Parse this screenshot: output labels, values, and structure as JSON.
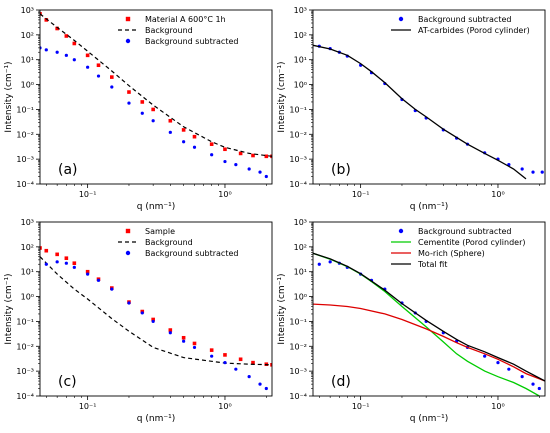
{
  "chart_data": [
    {
      "type": "scatter",
      "panel_label": "(a)",
      "xlabel": "q (nm⁻¹)",
      "ylabel": "Intensity (cm⁻¹)",
      "xscale": "log",
      "yscale": "log",
      "xlim": [
        0.045,
        2.2
      ],
      "ylim": [
        0.0001,
        1000
      ],
      "x_ticks": [
        {
          "v": 0.1,
          "label": "10⁻¹"
        },
        {
          "v": 1,
          "label": "10⁰"
        }
      ],
      "y_ticks": [
        {
          "v": 0.0001,
          "label": "10⁻⁴"
        },
        {
          "v": 0.001,
          "label": "10⁻³"
        },
        {
          "v": 0.01,
          "label": "10⁻²"
        },
        {
          "v": 0.1,
          "label": "10⁻¹"
        },
        {
          "v": 1,
          "label": "10⁰"
        },
        {
          "v": 10,
          "label": "10¹"
        },
        {
          "v": 100,
          "label": "10²"
        },
        {
          "v": 1000,
          "label": "10³"
        }
      ],
      "legend_position": "top-right",
      "series": [
        {
          "name": "Material A 600°C 1h",
          "style": "square",
          "color": "#ff0000",
          "x": [
            0.045,
            0.05,
            0.06,
            0.07,
            0.08,
            0.1,
            0.12,
            0.15,
            0.2,
            0.25,
            0.3,
            0.4,
            0.5,
            0.6,
            0.8,
            1.0,
            1.3,
            1.6,
            2.0,
            2.2
          ],
          "y": [
            700,
            400,
            180,
            90,
            45,
            15,
            6,
            2,
            0.5,
            0.2,
            0.1,
            0.035,
            0.015,
            0.008,
            0.004,
            0.0025,
            0.0017,
            0.0014,
            0.0013,
            0.0013
          ]
        },
        {
          "name": "Background",
          "style": "dashed",
          "color": "#000000",
          "x": [
            0.045,
            0.06,
            0.08,
            0.1,
            0.15,
            0.2,
            0.3,
            0.5,
            0.8,
            1.0,
            1.5,
            2.2
          ],
          "y": [
            700,
            200,
            60,
            22,
            3.5,
            0.9,
            0.15,
            0.02,
            0.005,
            0.003,
            0.0017,
            0.0013
          ]
        },
        {
          "name": "Background subtracted",
          "style": "circle",
          "color": "#0000ff",
          "x": [
            0.045,
            0.05,
            0.06,
            0.07,
            0.08,
            0.1,
            0.12,
            0.15,
            0.2,
            0.25,
            0.3,
            0.4,
            0.5,
            0.6,
            0.8,
            1.0,
            1.2,
            1.5,
            1.8,
            2.0
          ],
          "y": [
            30,
            25,
            20,
            15,
            10,
            5,
            2.2,
            0.8,
            0.18,
            0.07,
            0.035,
            0.012,
            0.005,
            0.003,
            0.0015,
            0.0008,
            0.0006,
            0.0004,
            0.0003,
            0.0002
          ]
        }
      ]
    },
    {
      "type": "scatter",
      "panel_label": "(b)",
      "xlabel": "q (nm⁻¹)",
      "ylabel": "Intensity (cm⁻¹)",
      "xscale": "log",
      "yscale": "log",
      "xlim": [
        0.045,
        2.2
      ],
      "ylim": [
        0.0001,
        1000
      ],
      "x_ticks": [
        {
          "v": 0.1,
          "label": "10⁻¹"
        },
        {
          "v": 1,
          "label": "10⁰"
        }
      ],
      "y_ticks": [
        {
          "v": 0.0001,
          "label": "10⁻⁴"
        },
        {
          "v": 0.001,
          "label": "10⁻³"
        },
        {
          "v": 0.01,
          "label": "10⁻²"
        },
        {
          "v": 0.1,
          "label": "10⁻¹"
        },
        {
          "v": 1,
          "label": "10⁰"
        },
        {
          "v": 10,
          "label": "10¹"
        },
        {
          "v": 100,
          "label": "10²"
        },
        {
          "v": 1000,
          "label": "10³"
        }
      ],
      "legend_position": "top-right",
      "series": [
        {
          "name": "Background subtracted",
          "style": "circle",
          "color": "#0000ff",
          "x": [
            0.05,
            0.06,
            0.07,
            0.08,
            0.1,
            0.12,
            0.15,
            0.2,
            0.25,
            0.3,
            0.4,
            0.5,
            0.6,
            0.8,
            1.0,
            1.2,
            1.5,
            1.8,
            2.1
          ],
          "y": [
            35,
            28,
            20,
            14,
            6,
            3,
            1.1,
            0.25,
            0.09,
            0.045,
            0.015,
            0.007,
            0.004,
            0.0018,
            0.001,
            0.0006,
            0.0004,
            0.0003,
            0.0003
          ]
        },
        {
          "name": "AT-carbides (Porod cylinder)",
          "style": "line",
          "color": "#000000",
          "x": [
            0.045,
            0.06,
            0.08,
            0.1,
            0.12,
            0.15,
            0.2,
            0.25,
            0.3,
            0.4,
            0.5,
            0.6,
            0.8,
            1.0,
            1.3,
            1.6
          ],
          "y": [
            38,
            27,
            15,
            7,
            3.3,
            1.2,
            0.27,
            0.1,
            0.05,
            0.016,
            0.0075,
            0.004,
            0.0017,
            0.0009,
            0.0004,
            0.00016
          ]
        }
      ]
    },
    {
      "type": "scatter",
      "panel_label": "(c)",
      "xlabel": "q (nm⁻¹)",
      "ylabel": "Intensity (cm⁻¹)",
      "xscale": "log",
      "yscale": "log",
      "xlim": [
        0.045,
        2.2
      ],
      "ylim": [
        0.0001,
        1000
      ],
      "x_ticks": [
        {
          "v": 0.1,
          "label": "10⁻¹"
        },
        {
          "v": 1,
          "label": "10⁰"
        }
      ],
      "y_ticks": [
        {
          "v": 0.0001,
          "label": "10⁻⁴"
        },
        {
          "v": 0.001,
          "label": "10⁻³"
        },
        {
          "v": 0.01,
          "label": "10⁻²"
        },
        {
          "v": 0.1,
          "label": "10⁻¹"
        },
        {
          "v": 1,
          "label": "10⁰"
        },
        {
          "v": 10,
          "label": "10¹"
        },
        {
          "v": 100,
          "label": "10²"
        },
        {
          "v": 1000,
          "label": "10³"
        }
      ],
      "legend_position": "top-right",
      "series": [
        {
          "name": "Sample",
          "style": "square",
          "color": "#ff0000",
          "x": [
            0.045,
            0.05,
            0.06,
            0.07,
            0.08,
            0.1,
            0.12,
            0.15,
            0.2,
            0.25,
            0.3,
            0.4,
            0.5,
            0.6,
            0.8,
            1.0,
            1.3,
            1.6,
            2.0,
            2.2
          ],
          "y": [
            90,
            70,
            50,
            35,
            22,
            10,
            5,
            2.2,
            0.6,
            0.25,
            0.12,
            0.045,
            0.022,
            0.013,
            0.007,
            0.0045,
            0.003,
            0.0022,
            0.0019,
            0.0018
          ]
        },
        {
          "name": "Background",
          "style": "dashed",
          "color": "#000000",
          "x": [
            0.045,
            0.06,
            0.08,
            0.1,
            0.15,
            0.2,
            0.3,
            0.5,
            0.8,
            1.0,
            1.5,
            2.2
          ],
          "y": [
            40,
            8,
            2,
            0.8,
            0.13,
            0.04,
            0.009,
            0.0035,
            0.0025,
            0.0021,
            0.0019,
            0.0018
          ]
        },
        {
          "name": "Background subtracted",
          "style": "circle",
          "color": "#0000ff",
          "x": [
            0.05,
            0.06,
            0.07,
            0.08,
            0.1,
            0.12,
            0.15,
            0.2,
            0.25,
            0.3,
            0.4,
            0.5,
            0.6,
            0.8,
            1.0,
            1.2,
            1.5,
            1.8,
            2.0
          ],
          "y": [
            20,
            25,
            22,
            15,
            8,
            4.5,
            2,
            0.55,
            0.22,
            0.1,
            0.035,
            0.016,
            0.009,
            0.004,
            0.0022,
            0.0012,
            0.0006,
            0.0003,
            0.0002
          ]
        }
      ]
    },
    {
      "type": "scatter",
      "panel_label": "(d)",
      "xlabel": "q (nm⁻¹)",
      "ylabel": "Intensity (cm⁻¹)",
      "xscale": "log",
      "yscale": "log",
      "xlim": [
        0.045,
        2.2
      ],
      "ylim": [
        0.0001,
        1000
      ],
      "x_ticks": [
        {
          "v": 0.1,
          "label": "10⁻¹"
        },
        {
          "v": 1,
          "label": "10⁰"
        }
      ],
      "y_ticks": [
        {
          "v": 0.0001,
          "label": "10⁻⁴"
        },
        {
          "v": 0.001,
          "label": "10⁻³"
        },
        {
          "v": 0.01,
          "label": "10⁻²"
        },
        {
          "v": 0.1,
          "label": "10⁻¹"
        },
        {
          "v": 1,
          "label": "10⁰"
        },
        {
          "v": 10,
          "label": "10¹"
        },
        {
          "v": 100,
          "label": "10²"
        },
        {
          "v": 1000,
          "label": "10³"
        }
      ],
      "legend_position": "top-right",
      "series": [
        {
          "name": "Background subtracted",
          "style": "circle",
          "color": "#0000ff",
          "x": [
            0.05,
            0.06,
            0.07,
            0.08,
            0.1,
            0.12,
            0.15,
            0.2,
            0.25,
            0.3,
            0.4,
            0.5,
            0.6,
            0.8,
            1.0,
            1.2,
            1.5,
            1.8,
            2.0
          ],
          "y": [
            20,
            25,
            22,
            15,
            8,
            4.5,
            2,
            0.55,
            0.22,
            0.1,
            0.035,
            0.016,
            0.009,
            0.004,
            0.0022,
            0.0012,
            0.0006,
            0.0003,
            0.0002
          ]
        },
        {
          "name": "Cementite (Porod cylinder)",
          "style": "line",
          "color": "#00cc00",
          "x": [
            0.045,
            0.06,
            0.08,
            0.1,
            0.12,
            0.15,
            0.2,
            0.3,
            0.4,
            0.5,
            0.6,
            0.8,
            1.0,
            1.3,
            1.6,
            2.0
          ],
          "y": [
            55,
            32,
            16,
            8,
            4,
            1.6,
            0.4,
            0.06,
            0.015,
            0.005,
            0.0025,
            0.001,
            0.0006,
            0.00035,
            0.0002,
            0.0001
          ]
        },
        {
          "name": "Mo-rich (Sphere)",
          "style": "line",
          "color": "#dd0000",
          "x": [
            0.045,
            0.06,
            0.08,
            0.1,
            0.15,
            0.2,
            0.3,
            0.4,
            0.5,
            0.6,
            0.8,
            1.0,
            1.3,
            1.6,
            2.2
          ],
          "y": [
            0.5,
            0.46,
            0.4,
            0.33,
            0.2,
            0.12,
            0.05,
            0.025,
            0.014,
            0.009,
            0.005,
            0.003,
            0.0015,
            0.0008,
            0.0004
          ]
        },
        {
          "name": "Total fit",
          "style": "line",
          "color": "#000000",
          "x": [
            0.045,
            0.06,
            0.08,
            0.1,
            0.12,
            0.15,
            0.2,
            0.3,
            0.4,
            0.5,
            0.6,
            0.8,
            1.0,
            1.3,
            1.6,
            2.2
          ],
          "y": [
            55,
            33,
            16.5,
            8.3,
            4.2,
            1.8,
            0.52,
            0.11,
            0.04,
            0.019,
            0.011,
            0.006,
            0.0035,
            0.0019,
            0.001,
            0.0004
          ]
        }
      ]
    }
  ]
}
